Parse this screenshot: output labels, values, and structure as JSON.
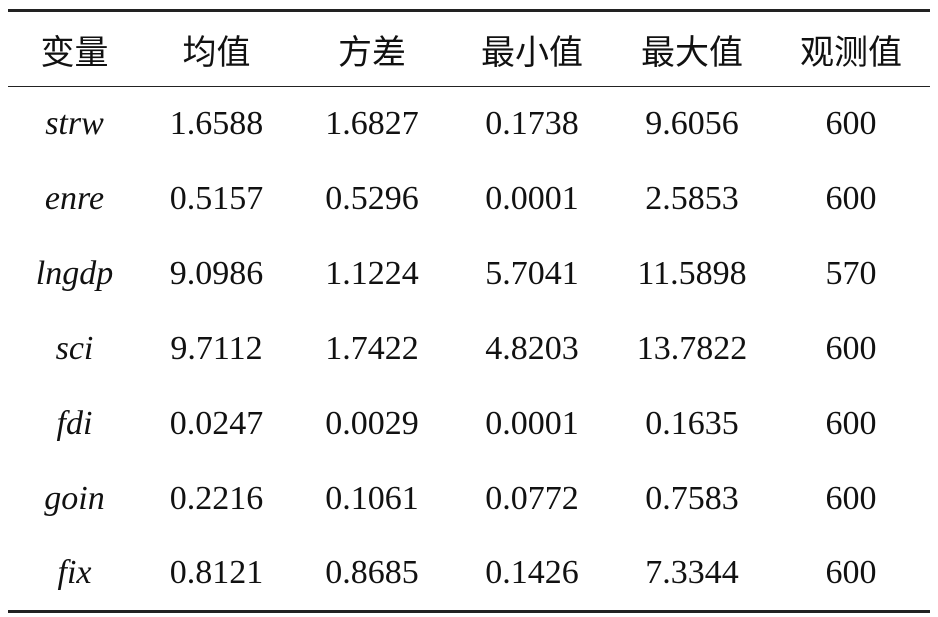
{
  "table": {
    "header": [
      "变量",
      "均值",
      "方差",
      "最小值",
      "最大值",
      "观测值"
    ],
    "rows": [
      [
        "strw",
        1.6588,
        1.6827,
        0.1738,
        9.6056,
        600
      ],
      [
        "enre",
        0.5157,
        0.5296,
        0.0001,
        2.5853,
        600
      ],
      [
        "lngdp",
        9.0986,
        1.1224,
        5.7041,
        11.5898,
        570
      ],
      [
        "sci",
        9.7112,
        1.7422,
        4.8203,
        13.7822,
        600
      ],
      [
        "fdi",
        0.0247,
        0.0029,
        0.0001,
        0.1635,
        600
      ],
      [
        "goin",
        0.2216,
        0.1061,
        0.0772,
        0.7583,
        600
      ],
      [
        "fix",
        0.8121,
        0.8685,
        0.1426,
        7.3344,
        600
      ]
    ]
  }
}
